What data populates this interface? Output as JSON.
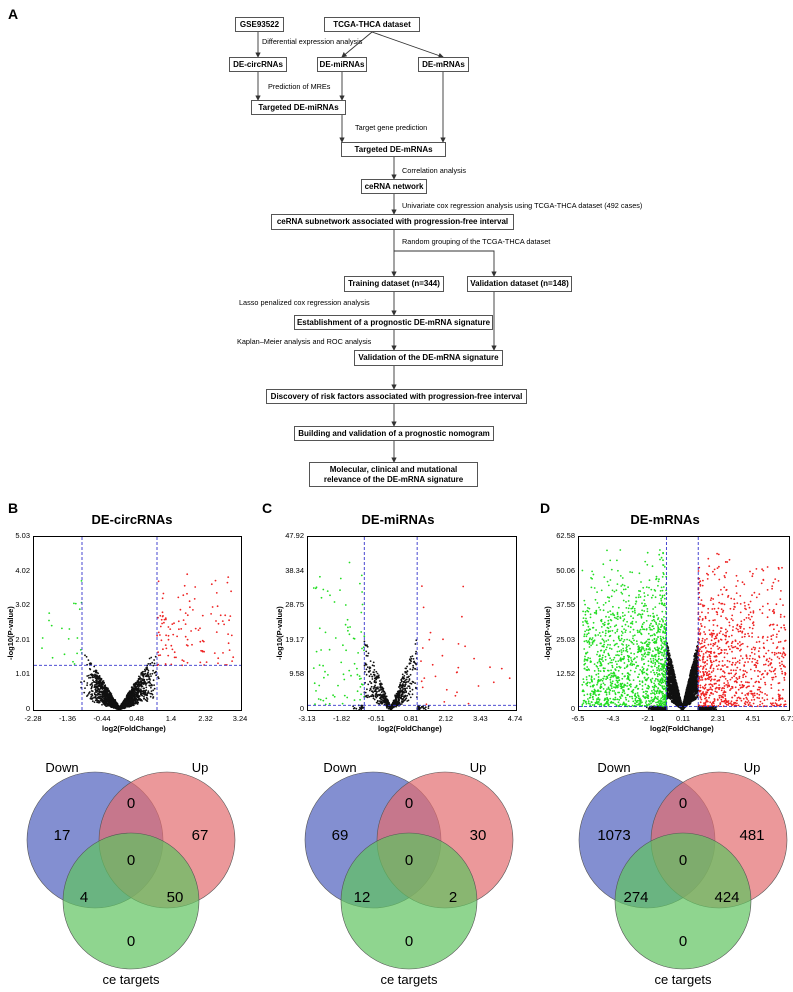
{
  "panels": {
    "A": "A",
    "B": "B",
    "C": "C",
    "D": "D"
  },
  "flowchart": {
    "boxes": {
      "gse": "GSE93522",
      "tcga": "TCGA-THCA dataset",
      "decirc": "DE-circRNAs",
      "demi": "DE-miRNAs",
      "demrna": "DE-mRNAs",
      "targeted_mi": "Targeted DE-miRNAs",
      "targeted_mrna": "Targeted DE-mRNAs",
      "cerna": "ceRNA network",
      "subnet": "ceRNA subnetwork associated with progression-free interval",
      "training": "Training dataset (n=344)",
      "validation": "Validation dataset (n=148)",
      "establish": "Establishment of a prognostic DE-mRNA signature",
      "validate_sig": "Validation of the DE-mRNA signature",
      "risk": "Discovery of risk factors associated with progression-free interval",
      "nomogram": "Building and validation of a prognostic nomogram",
      "relevance": "Molecular, clinical and mutational\nrelevance of the DE-mRNA signature"
    },
    "labels": {
      "diff": "Differential expression analysis",
      "mre": "Prediction of MREs",
      "target": "Target gene prediction",
      "corr": "Correlation analysis",
      "univariate": "Univariate cox regression analysis using TCGA-THCA dataset (492 cases)",
      "random": "Random grouping of the TCGA-THCA dataset",
      "lasso": "Lasso penalized  cox regression analysis",
      "km": "Kaplan–Meier analysis and ROC analysis"
    }
  },
  "colors": {
    "down": "#22dd22",
    "up": "#ee2222",
    "ns": "#111111",
    "threshold": "#3333cc",
    "venn_down": "#6d7bc9",
    "venn_up": "#e26c6f",
    "venn_ce": "#5fc35f"
  },
  "chart_data": [
    {
      "type": "scatter",
      "title": "DE-circRNAs",
      "xlabel": "log2(FoldChange)",
      "ylabel": "-log10(P-value)",
      "xticks": [
        "-2.28",
        "-1.36",
        "-0.44",
        "0.48",
        "1.4",
        "2.32",
        "3.24"
      ],
      "xtick_values": [
        -2.28,
        -1.36,
        -0.44,
        0.48,
        1.4,
        2.32,
        3.24
      ],
      "yticks": [
        "0",
        "1.01",
        "2.01",
        "3.02",
        "4.02",
        "5.03"
      ],
      "ytick_values": [
        0,
        1.01,
        2.01,
        3.02,
        4.02,
        5.03
      ],
      "xlim": [
        -2.28,
        3.24
      ],
      "ylim": [
        0,
        5.03
      ],
      "fc_threshold": [
        -1,
        1
      ],
      "p_threshold": 1.3,
      "counts": {
        "down": 21,
        "up": 117,
        "ns": 2000
      },
      "max_y": 4.3
    },
    {
      "type": "scatter",
      "title": "DE-miRNAs",
      "xlabel": "log2(FoldChange)",
      "ylabel": "-log10(P-value)",
      "xticks": [
        "-3.13",
        "-1.82",
        "-0.51",
        "0.81",
        "2.12",
        "3.43",
        "4.74"
      ],
      "xtick_values": [
        -3.13,
        -1.82,
        -0.51,
        0.81,
        2.12,
        3.43,
        4.74
      ],
      "yticks": [
        "0",
        "9.58",
        "19.17",
        "28.75",
        "38.34",
        "47.92"
      ],
      "ytick_values": [
        0,
        9.58,
        19.17,
        28.75,
        38.34,
        47.92
      ],
      "xlim": [
        -3.13,
        4.74
      ],
      "ylim": [
        0,
        47.92
      ],
      "fc_threshold": [
        -1,
        1
      ],
      "p_threshold": 1.3,
      "counts": {
        "down": 81,
        "up": 32,
        "ns": 700
      },
      "max_y": 47
    },
    {
      "type": "scatter",
      "title": "DE-mRNAs",
      "xlabel": "log2(FoldChange)",
      "ylabel": "-log10(P-value)",
      "xticks": [
        "-6.5",
        "-4.3",
        "-2.1",
        "0.11",
        "2.31",
        "4.51",
        "6.71"
      ],
      "xtick_values": [
        -6.5,
        -4.3,
        -2.1,
        0.11,
        2.31,
        4.51,
        6.71
      ],
      "yticks": [
        "0",
        "12.52",
        "25.03",
        "37.55",
        "50.06",
        "62.58"
      ],
      "ytick_values": [
        0,
        12.52,
        25.03,
        37.55,
        50.06,
        62.58
      ],
      "xlim": [
        -6.5,
        6.71
      ],
      "ylim": [
        0,
        62.58
      ],
      "fc_threshold": [
        -1,
        1
      ],
      "p_threshold": 1.3,
      "counts": {
        "down": 1347,
        "up": 905,
        "ns": 4000
      },
      "max_y": 59
    }
  ],
  "venns": [
    {
      "down_label": "Down",
      "up_label": "Up",
      "ce_label": "ce targets",
      "down_only": "17",
      "down_up": "0",
      "up_only": "67",
      "center": "0",
      "down_ce": "4",
      "up_ce": "50",
      "ce_only": "0"
    },
    {
      "down_label": "Down",
      "up_label": "Up",
      "ce_label": "ce targets",
      "down_only": "69",
      "down_up": "0",
      "up_only": "30",
      "center": "0",
      "down_ce": "12",
      "up_ce": "2",
      "ce_only": "0"
    },
    {
      "down_label": "Down",
      "up_label": "Up",
      "ce_label": "ce targets",
      "down_only": "1073",
      "down_up": "0",
      "up_only": "481",
      "center": "0",
      "down_ce": "274",
      "up_ce": "424",
      "ce_only": "0"
    }
  ]
}
